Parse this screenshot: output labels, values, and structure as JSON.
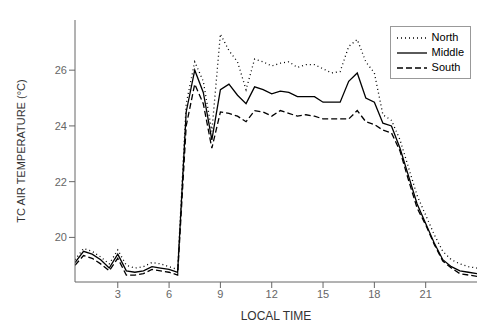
{
  "chart_data": {
    "type": "line",
    "title": "",
    "xlabel": "LOCAL TIME",
    "ylabel": "TC AIR TEMPERATURE (°C)",
    "xlim": [
      0.5,
      24
    ],
    "ylim": [
      18.4,
      27.8
    ],
    "xticks": [
      3,
      6,
      9,
      12,
      15,
      18,
      21
    ],
    "yticks": [
      20,
      22,
      24,
      26
    ],
    "grid": false,
    "legend": "upper right",
    "x": [
      0.5,
      1.0,
      1.5,
      2.0,
      2.5,
      3.0,
      3.5,
      4.0,
      4.5,
      5.0,
      5.5,
      6.0,
      6.5,
      7.0,
      7.5,
      8.0,
      8.5,
      9.0,
      9.5,
      10.0,
      10.5,
      11.0,
      11.5,
      12.0,
      12.5,
      13.0,
      13.5,
      14.0,
      14.5,
      15.0,
      15.5,
      16.0,
      16.5,
      17.0,
      17.5,
      18.0,
      18.5,
      19.0,
      19.5,
      20.0,
      20.5,
      21.0,
      21.5,
      22.0,
      22.5,
      23.0,
      23.5,
      24.0
    ],
    "series": [
      {
        "name": "North",
        "color": "#000000",
        "line_style": "dotted",
        "values": [
          19.2,
          19.6,
          19.5,
          19.3,
          19.05,
          19.55,
          19.0,
          18.9,
          18.95,
          19.1,
          19.05,
          18.95,
          18.85,
          24.8,
          26.3,
          25.6,
          23.8,
          27.3,
          26.7,
          26.3,
          25.3,
          26.4,
          26.3,
          26.15,
          26.25,
          26.3,
          26.1,
          26.2,
          26.2,
          26.05,
          25.9,
          25.95,
          26.85,
          27.1,
          26.3,
          25.9,
          24.4,
          24.2,
          23.5,
          22.5,
          21.5,
          20.8,
          20.1,
          19.5,
          19.2,
          19.05,
          18.95,
          18.9
        ]
      },
      {
        "name": "Middle",
        "color": "#000000",
        "line_style": "solid",
        "values": [
          19.1,
          19.5,
          19.4,
          19.2,
          18.9,
          19.4,
          18.8,
          18.75,
          18.8,
          18.95,
          18.9,
          18.85,
          18.75,
          24.5,
          26.0,
          25.2,
          23.5,
          25.3,
          25.5,
          25.1,
          24.8,
          25.4,
          25.3,
          25.15,
          25.25,
          25.2,
          25.05,
          25.05,
          25.05,
          24.85,
          24.85,
          24.85,
          25.6,
          25.9,
          25.0,
          24.85,
          24.1,
          24.0,
          23.2,
          22.2,
          21.2,
          20.5,
          19.8,
          19.2,
          18.95,
          18.8,
          18.75,
          18.7
        ]
      },
      {
        "name": "South",
        "color": "#000000",
        "line_style": "dashed",
        "values": [
          19.0,
          19.35,
          19.25,
          19.05,
          18.8,
          19.25,
          18.65,
          18.65,
          18.7,
          18.85,
          18.8,
          18.75,
          18.65,
          24.0,
          25.5,
          24.8,
          23.2,
          24.5,
          24.45,
          24.35,
          24.15,
          24.55,
          24.5,
          24.35,
          24.55,
          24.45,
          24.35,
          24.4,
          24.35,
          24.25,
          24.25,
          24.25,
          24.25,
          24.55,
          24.15,
          24.05,
          23.85,
          23.75,
          23.1,
          22.05,
          21.05,
          20.45,
          19.75,
          19.15,
          18.9,
          18.7,
          18.65,
          18.6
        ]
      }
    ]
  }
}
